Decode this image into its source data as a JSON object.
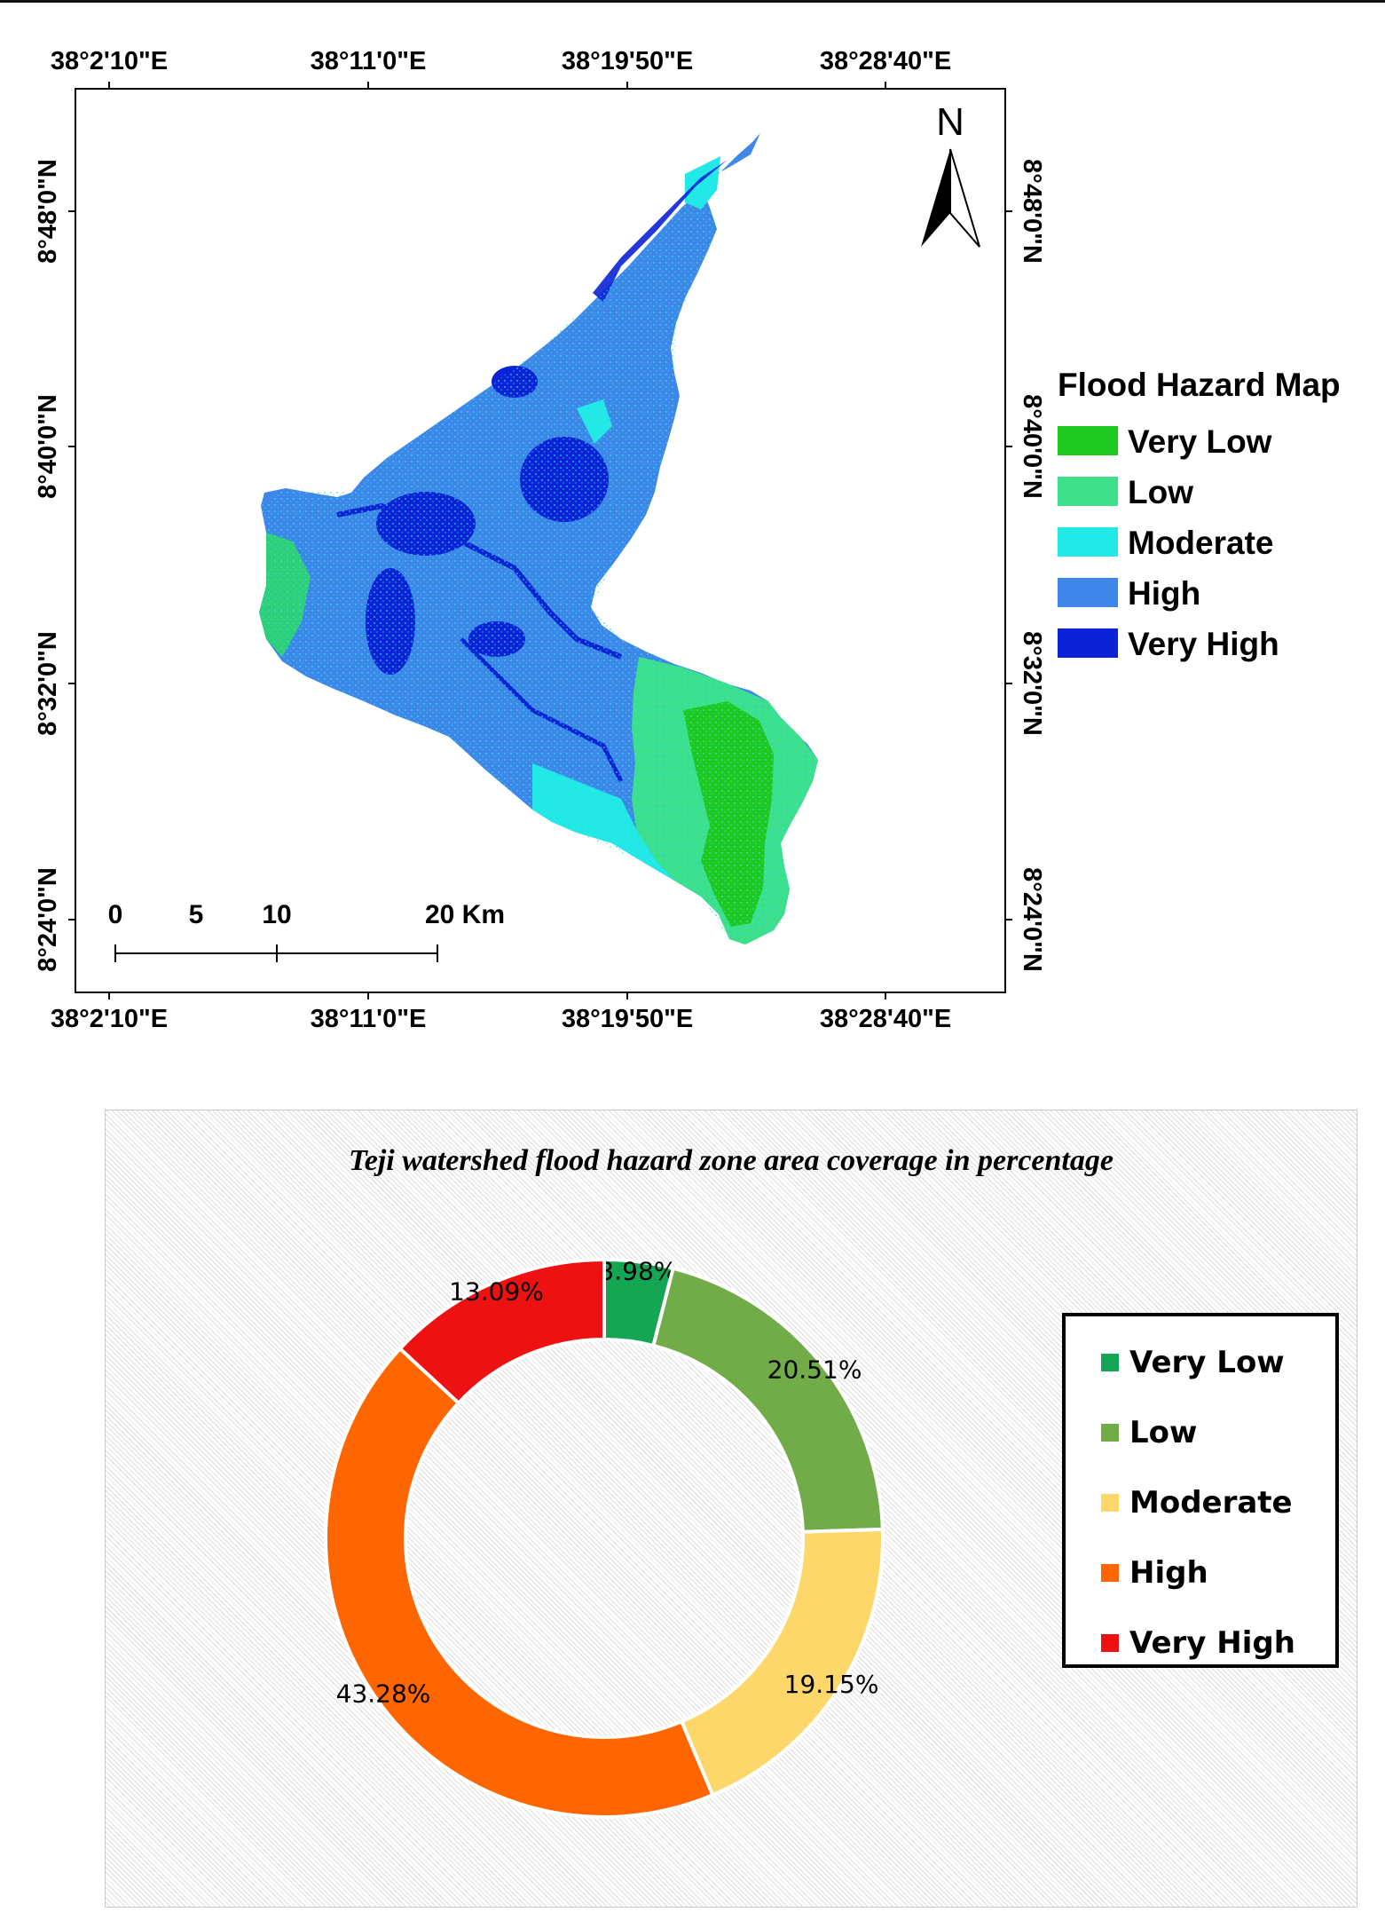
{
  "map": {
    "lon_labels": [
      "38°2'10\"E",
      "38°11'0\"E",
      "38°19'50\"E",
      "38°28'40\"E"
    ],
    "lat_labels": [
      "8°48'0\"N",
      "8°40'0\"N",
      "8°32'0\"N",
      "8°24'0\"N"
    ],
    "north_label": "N",
    "scalebar": {
      "ticks": [
        "0",
        "5",
        "10",
        "20 Km"
      ]
    },
    "legend": {
      "title": "Flood Hazard Map",
      "items": [
        {
          "label": "Very Low",
          "color": "#1ec81e"
        },
        {
          "label": "Low",
          "color": "#3ddf8a"
        },
        {
          "label": "Moderate",
          "color": "#22e8e8"
        },
        {
          "label": "High",
          "color": "#3f86ea"
        },
        {
          "label": "Very High",
          "color": "#0b22d6"
        }
      ]
    }
  },
  "chart": {
    "title": "Teji watershed flood hazard zone area coverage in percentage"
  },
  "chart_data": {
    "type": "pie",
    "donut": true,
    "title": "Teji watershed flood hazard zone area coverage in percentage",
    "categories": [
      "Very Low",
      "Low",
      "Moderate",
      "High",
      "Very High"
    ],
    "values": [
      3.98,
      20.51,
      19.15,
      43.28,
      13.09
    ],
    "labels": [
      "3.98%",
      "20.51%",
      "19.15%",
      "43.28%",
      "13.09%"
    ],
    "colors": [
      "#14a653",
      "#72ac48",
      "#fdd76a",
      "#ff6600",
      "#ee1111"
    ],
    "legend_position": "right"
  }
}
